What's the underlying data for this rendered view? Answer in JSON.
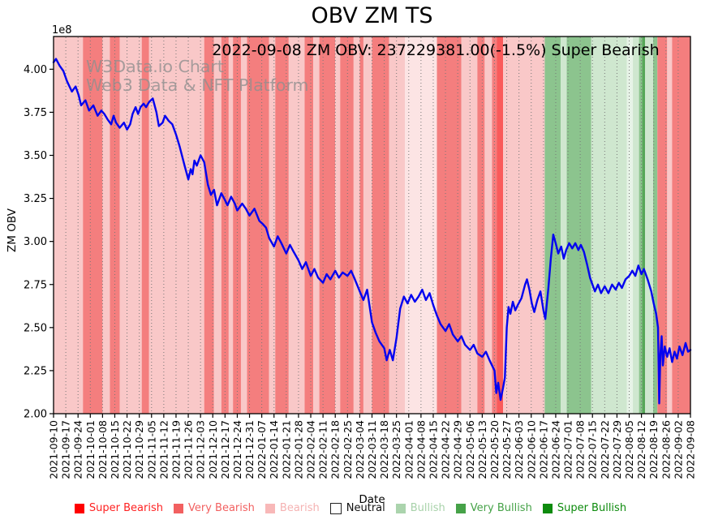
{
  "title": "OBV ZM TS",
  "annotation": "2022-09-08 ZM OBV: 237229381.00(-1.5%) Super Bearish",
  "watermark": {
    "line1": "W3Data.io Chart",
    "line2": "Web3 Data & NFT Platform"
  },
  "axes": {
    "xlabel": "Date",
    "ylabel": "ZM OBV",
    "y_offset_label": "1e8"
  },
  "legend": {
    "position": "bottom",
    "items": [
      {
        "label": "Super Bearish",
        "swatch": "#ff0000",
        "text_color": "#fe2222",
        "border": false
      },
      {
        "label": "Very Bearish",
        "swatch": "#f26060",
        "text_color": "#f26060",
        "border": false
      },
      {
        "label": "Bearish",
        "swatch": "#f8b8b8",
        "text_color": "#f5b2b2",
        "border": false
      },
      {
        "label": "Neutral",
        "swatch": "#ffffff",
        "text_color": "#111111",
        "border": true
      },
      {
        "label": "Bullish",
        "swatch": "#abd4ad",
        "text_color": "#a8d2aa",
        "border": false
      },
      {
        "label": "Very Bullish",
        "swatch": "#46a248",
        "text_color": "#46a248",
        "border": false
      },
      {
        "label": "Super Bullish",
        "swatch": "#0e8b0e",
        "text_color": "#0e8b0e",
        "border": false
      }
    ]
  },
  "chart_data": {
    "type": "line",
    "title": "OBV ZM TS",
    "xlabel": "Date",
    "ylabel": "ZM OBV",
    "y_scale_factor": "1e8",
    "ylim": [
      2.0,
      4.19
    ],
    "grid": {
      "vertical": true,
      "style": "dotted",
      "color": "#777777"
    },
    "line_color": "#0404f0",
    "last_point": {
      "date": "2022-09-08",
      "obv": 237229381.0,
      "change_pct": "-1.5%",
      "signal": "Super Bearish"
    },
    "yticks": [
      {
        "value": 2.0,
        "label": "2.00"
      },
      {
        "value": 2.25,
        "label": "2.25"
      },
      {
        "value": 2.5,
        "label": "2.50"
      },
      {
        "value": 2.75,
        "label": "2.75"
      },
      {
        "value": 3.0,
        "label": "3.00"
      },
      {
        "value": 3.25,
        "label": "3.25"
      },
      {
        "value": 3.5,
        "label": "3.50"
      },
      {
        "value": 3.75,
        "label": "3.75"
      },
      {
        "value": 4.0,
        "label": "4.00"
      }
    ],
    "xticks": [
      "2021-09-10",
      "2021-09-17",
      "2021-09-24",
      "2021-10-01",
      "2021-10-08",
      "2021-10-15",
      "2021-10-22",
      "2021-10-29",
      "2021-11-05",
      "2021-11-12",
      "2021-11-19",
      "2021-11-26",
      "2021-12-03",
      "2021-12-10",
      "2021-12-17",
      "2021-12-24",
      "2021-12-31",
      "2022-01-07",
      "2022-01-14",
      "2022-01-21",
      "2022-01-28",
      "2022-02-04",
      "2022-02-11",
      "2022-02-18",
      "2022-02-25",
      "2022-03-04",
      "2022-03-11",
      "2022-03-18",
      "2022-03-25",
      "2022-04-01",
      "2022-04-08",
      "2022-04-15",
      "2022-04-22",
      "2022-04-29",
      "2022-05-06",
      "2022-05-13",
      "2022-05-20",
      "2022-05-27",
      "2022-06-03",
      "2022-06-10",
      "2022-06-17",
      "2022-06-24",
      "2022-07-01",
      "2022-07-08",
      "2022-07-15",
      "2022-07-22",
      "2022-07-29",
      "2022-08-05",
      "2022-08-12",
      "2022-08-19",
      "2022-08-26",
      "2022-09-02",
      "2022-09-08"
    ],
    "band_colors": {
      "super_bearish": "#fa5a5a",
      "very_bearish": "#f47e7e",
      "bearish": "#f9c8c8",
      "bearish_light": "#fce4e4",
      "neutral": "#ffffff",
      "bullish_light": "#e7f3e7",
      "bullish": "#cfe7cf",
      "very_bullish": "#8cc48e",
      "super_bullish": "#57a759"
    },
    "bands": [
      [
        0,
        2.4,
        "bearish"
      ],
      [
        2.4,
        4.0,
        "very_bearish"
      ],
      [
        4.0,
        4.6,
        "bearish"
      ],
      [
        4.6,
        5.4,
        "very_bearish"
      ],
      [
        5.4,
        7.2,
        "bearish"
      ],
      [
        7.2,
        7.8,
        "very_bearish"
      ],
      [
        7.8,
        12.3,
        "bearish"
      ],
      [
        12.3,
        13.1,
        "very_bearish"
      ],
      [
        13.1,
        13.7,
        "bearish"
      ],
      [
        13.7,
        14.3,
        "very_bearish"
      ],
      [
        14.3,
        14.65,
        "bearish"
      ],
      [
        14.65,
        15.3,
        "very_bearish"
      ],
      [
        15.3,
        15.8,
        "bearish"
      ],
      [
        15.8,
        17.6,
        "very_bearish"
      ],
      [
        17.6,
        18.1,
        "bearish"
      ],
      [
        18.1,
        19.2,
        "very_bearish"
      ],
      [
        19.2,
        20.5,
        "bearish"
      ],
      [
        20.5,
        21.2,
        "very_bearish"
      ],
      [
        21.2,
        21.7,
        "bearish"
      ],
      [
        21.7,
        23.0,
        "very_bearish"
      ],
      [
        23.0,
        23.4,
        "bearish"
      ],
      [
        23.4,
        24.5,
        "very_bearish"
      ],
      [
        24.5,
        25.0,
        "bearish"
      ],
      [
        25.0,
        25.3,
        "very_bearish"
      ],
      [
        25.3,
        26.0,
        "bearish"
      ],
      [
        26.0,
        27.4,
        "very_bearish"
      ],
      [
        27.4,
        28.7,
        "bearish"
      ],
      [
        28.7,
        31.3,
        "bearish_light"
      ],
      [
        31.3,
        33.3,
        "very_bearish"
      ],
      [
        33.3,
        34.6,
        "bearish"
      ],
      [
        34.6,
        35.2,
        "very_bearish"
      ],
      [
        35.2,
        35.8,
        "bearish"
      ],
      [
        35.8,
        36.2,
        "very_bearish"
      ],
      [
        36.2,
        36.7,
        "super_bearish"
      ],
      [
        36.7,
        40.1,
        "bearish"
      ],
      [
        40.1,
        41.4,
        "very_bullish"
      ],
      [
        41.4,
        41.9,
        "bullish"
      ],
      [
        41.9,
        43.9,
        "very_bullish"
      ],
      [
        43.9,
        46.8,
        "bullish"
      ],
      [
        46.8,
        47.3,
        "bullish_light"
      ],
      [
        47.3,
        47.8,
        "bullish"
      ],
      [
        47.8,
        48.05,
        "very_bullish"
      ],
      [
        48.05,
        48.3,
        "super_bullish"
      ],
      [
        48.3,
        48.95,
        "bullish"
      ],
      [
        48.95,
        49.3,
        "very_bullish"
      ],
      [
        49.3,
        50.1,
        "very_bearish"
      ],
      [
        50.1,
        50.5,
        "bearish"
      ],
      [
        50.5,
        52,
        "very_bearish"
      ]
    ],
    "series": [
      {
        "name": "ZM OBV",
        "points": [
          [
            0,
            4.04
          ],
          [
            0.2,
            4.06
          ],
          [
            0.5,
            4.02
          ],
          [
            0.8,
            3.99
          ],
          [
            1.1,
            3.93
          ],
          [
            1.5,
            3.87
          ],
          [
            1.8,
            3.9
          ],
          [
            2.05,
            3.85
          ],
          [
            2.25,
            3.79
          ],
          [
            2.6,
            3.82
          ],
          [
            2.9,
            3.76
          ],
          [
            3.25,
            3.79
          ],
          [
            3.6,
            3.73
          ],
          [
            3.9,
            3.76
          ],
          [
            4.15,
            3.74
          ],
          [
            4.4,
            3.71
          ],
          [
            4.7,
            3.68
          ],
          [
            4.9,
            3.73
          ],
          [
            5.1,
            3.69
          ],
          [
            5.4,
            3.66
          ],
          [
            5.75,
            3.69
          ],
          [
            6,
            3.65
          ],
          [
            6.25,
            3.68
          ],
          [
            6.45,
            3.74
          ],
          [
            6.7,
            3.78
          ],
          [
            6.9,
            3.74
          ],
          [
            7.1,
            3.78
          ],
          [
            7.35,
            3.8
          ],
          [
            7.55,
            3.78
          ],
          [
            7.8,
            3.81
          ],
          [
            8.1,
            3.83
          ],
          [
            8.4,
            3.75
          ],
          [
            8.6,
            3.67
          ],
          [
            8.9,
            3.69
          ],
          [
            9.1,
            3.73
          ],
          [
            9.4,
            3.7
          ],
          [
            9.7,
            3.68
          ],
          [
            10,
            3.62
          ],
          [
            10.3,
            3.55
          ],
          [
            10.7,
            3.44
          ],
          [
            11,
            3.36
          ],
          [
            11.2,
            3.42
          ],
          [
            11.35,
            3.39
          ],
          [
            11.5,
            3.47
          ],
          [
            11.7,
            3.44
          ],
          [
            12,
            3.5
          ],
          [
            12.3,
            3.46
          ],
          [
            12.6,
            3.33
          ],
          [
            12.85,
            3.27
          ],
          [
            13.1,
            3.3
          ],
          [
            13.35,
            3.21
          ],
          [
            13.7,
            3.28
          ],
          [
            14,
            3.24
          ],
          [
            14.2,
            3.21
          ],
          [
            14.5,
            3.26
          ],
          [
            14.8,
            3.22
          ],
          [
            15,
            3.18
          ],
          [
            15.4,
            3.22
          ],
          [
            15.7,
            3.19
          ],
          [
            16,
            3.15
          ],
          [
            16.4,
            3.19
          ],
          [
            16.8,
            3.12
          ],
          [
            17.1,
            3.1
          ],
          [
            17.35,
            3.08
          ],
          [
            17.6,
            3.02
          ],
          [
            18,
            2.97
          ],
          [
            18.3,
            3.03
          ],
          [
            18.6,
            2.99
          ],
          [
            19,
            2.93
          ],
          [
            19.3,
            2.98
          ],
          [
            19.6,
            2.94
          ],
          [
            20,
            2.89
          ],
          [
            20.3,
            2.84
          ],
          [
            20.6,
            2.88
          ],
          [
            21,
            2.8
          ],
          [
            21.3,
            2.84
          ],
          [
            21.6,
            2.79
          ],
          [
            22,
            2.76
          ],
          [
            22.3,
            2.81
          ],
          [
            22.6,
            2.78
          ],
          [
            23,
            2.83
          ],
          [
            23.3,
            2.79
          ],
          [
            23.6,
            2.82
          ],
          [
            24,
            2.8
          ],
          [
            24.3,
            2.83
          ],
          [
            24.6,
            2.78
          ],
          [
            25,
            2.71
          ],
          [
            25.3,
            2.66
          ],
          [
            25.6,
            2.72
          ],
          [
            26,
            2.53
          ],
          [
            26.3,
            2.47
          ],
          [
            26.6,
            2.42
          ],
          [
            27,
            2.38
          ],
          [
            27.2,
            2.31
          ],
          [
            27.45,
            2.37
          ],
          [
            27.7,
            2.31
          ],
          [
            28,
            2.44
          ],
          [
            28.3,
            2.61
          ],
          [
            28.6,
            2.68
          ],
          [
            28.9,
            2.64
          ],
          [
            29.2,
            2.69
          ],
          [
            29.5,
            2.65
          ],
          [
            29.8,
            2.68
          ],
          [
            30.1,
            2.72
          ],
          [
            30.4,
            2.66
          ],
          [
            30.7,
            2.7
          ],
          [
            31,
            2.63
          ],
          [
            31.3,
            2.57
          ],
          [
            31.6,
            2.52
          ],
          [
            32,
            2.48
          ],
          [
            32.3,
            2.52
          ],
          [
            32.6,
            2.46
          ],
          [
            33,
            2.42
          ],
          [
            33.3,
            2.45
          ],
          [
            33.6,
            2.4
          ],
          [
            34,
            2.37
          ],
          [
            34.3,
            2.4
          ],
          [
            34.6,
            2.35
          ],
          [
            35,
            2.33
          ],
          [
            35.3,
            2.36
          ],
          [
            35.6,
            2.31
          ],
          [
            36,
            2.25
          ],
          [
            36.15,
            2.12
          ],
          [
            36.3,
            2.18
          ],
          [
            36.5,
            2.08
          ],
          [
            36.7,
            2.15
          ],
          [
            36.85,
            2.21
          ],
          [
            37,
            2.5
          ],
          [
            37.15,
            2.62
          ],
          [
            37.3,
            2.58
          ],
          [
            37.5,
            2.65
          ],
          [
            37.7,
            2.6
          ],
          [
            37.9,
            2.63
          ],
          [
            38.2,
            2.67
          ],
          [
            38.5,
            2.75
          ],
          [
            38.65,
            2.78
          ],
          [
            38.85,
            2.72
          ],
          [
            39.05,
            2.64
          ],
          [
            39.25,
            2.59
          ],
          [
            39.5,
            2.66
          ],
          [
            39.75,
            2.71
          ],
          [
            40,
            2.6
          ],
          [
            40.15,
            2.55
          ],
          [
            40.4,
            2.73
          ],
          [
            40.6,
            2.9
          ],
          [
            40.8,
            3.04
          ],
          [
            41,
            2.99
          ],
          [
            41.2,
            2.93
          ],
          [
            41.45,
            2.97
          ],
          [
            41.65,
            2.9
          ],
          [
            41.85,
            2.95
          ],
          [
            42.1,
            2.99
          ],
          [
            42.35,
            2.96
          ],
          [
            42.6,
            2.99
          ],
          [
            42.85,
            2.95
          ],
          [
            43.05,
            2.98
          ],
          [
            43.3,
            2.94
          ],
          [
            43.55,
            2.87
          ],
          [
            43.8,
            2.79
          ],
          [
            44,
            2.75
          ],
          [
            44.2,
            2.71
          ],
          [
            44.45,
            2.75
          ],
          [
            44.7,
            2.7
          ],
          [
            45,
            2.74
          ],
          [
            45.3,
            2.7
          ],
          [
            45.6,
            2.75
          ],
          [
            45.9,
            2.72
          ],
          [
            46.15,
            2.76
          ],
          [
            46.4,
            2.73
          ],
          [
            46.7,
            2.78
          ],
          [
            47,
            2.8
          ],
          [
            47.25,
            2.83
          ],
          [
            47.5,
            2.8
          ],
          [
            47.75,
            2.86
          ],
          [
            48,
            2.81
          ],
          [
            48.2,
            2.84
          ],
          [
            48.5,
            2.78
          ],
          [
            48.8,
            2.71
          ],
          [
            49,
            2.64
          ],
          [
            49.2,
            2.58
          ],
          [
            49.35,
            2.5
          ],
          [
            49.45,
            2.06
          ],
          [
            49.55,
            2.35
          ],
          [
            49.65,
            2.45
          ],
          [
            49.75,
            2.28
          ],
          [
            49.9,
            2.39
          ],
          [
            50.1,
            2.33
          ],
          [
            50.3,
            2.38
          ],
          [
            50.5,
            2.3
          ],
          [
            50.7,
            2.36
          ],
          [
            50.9,
            2.32
          ],
          [
            51.1,
            2.39
          ],
          [
            51.35,
            2.34
          ],
          [
            51.6,
            2.41
          ],
          [
            51.8,
            2.36
          ],
          [
            52,
            2.37
          ]
        ]
      }
    ]
  }
}
